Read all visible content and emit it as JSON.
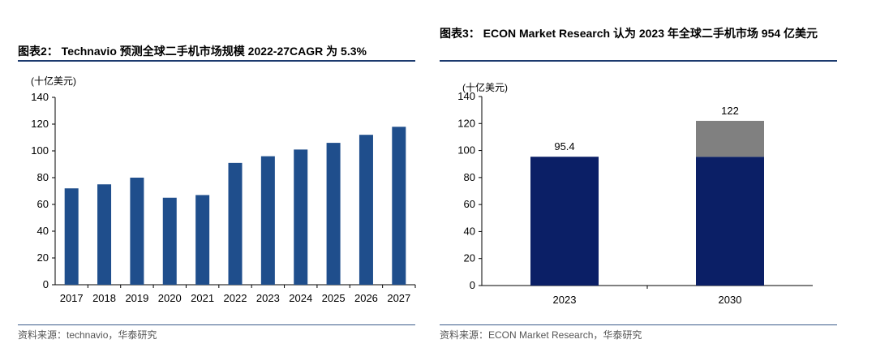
{
  "left": {
    "title": "图表2：  Technavio 预测全球二手机市场规模 2022-27CAGR 为 5.3%",
    "source": "资料来源：technavio，华泰研究",
    "chart_data": {
      "type": "bar",
      "ylabel": "(十亿美元)",
      "ylim": [
        0,
        140
      ],
      "yticks": [
        "0",
        "20",
        "40",
        "60",
        "80",
        "100",
        "120",
        "140"
      ],
      "categories": [
        "2017",
        "2018",
        "2019",
        "2020",
        "2021",
        "2022",
        "2023",
        "2024",
        "2025",
        "2026",
        "2027"
      ],
      "values": [
        72,
        75,
        80,
        65,
        67,
        91,
        96,
        101,
        106,
        112,
        118
      ],
      "color": "#1f4e8c"
    }
  },
  "right": {
    "title": "图表3：  ECON Market Research 认为 2023 年全球二手机市场 954 亿美元",
    "source": "资料来源：ECON Market Research，华泰研究",
    "chart_data": {
      "type": "bar",
      "stacked": true,
      "ylabel": "(十亿美元)",
      "ylim": [
        0,
        140
      ],
      "yticks": [
        "0",
        "20",
        "40",
        "60",
        "80",
        "100",
        "120",
        "140"
      ],
      "categories": [
        "2023",
        "2030"
      ],
      "series": [
        {
          "values": [
            95.4,
            95.4
          ],
          "color": "#0b1f66"
        },
        {
          "values": [
            0,
            26.6
          ],
          "color": "#808080"
        }
      ],
      "data_labels": [
        "95.4",
        "122"
      ]
    }
  }
}
